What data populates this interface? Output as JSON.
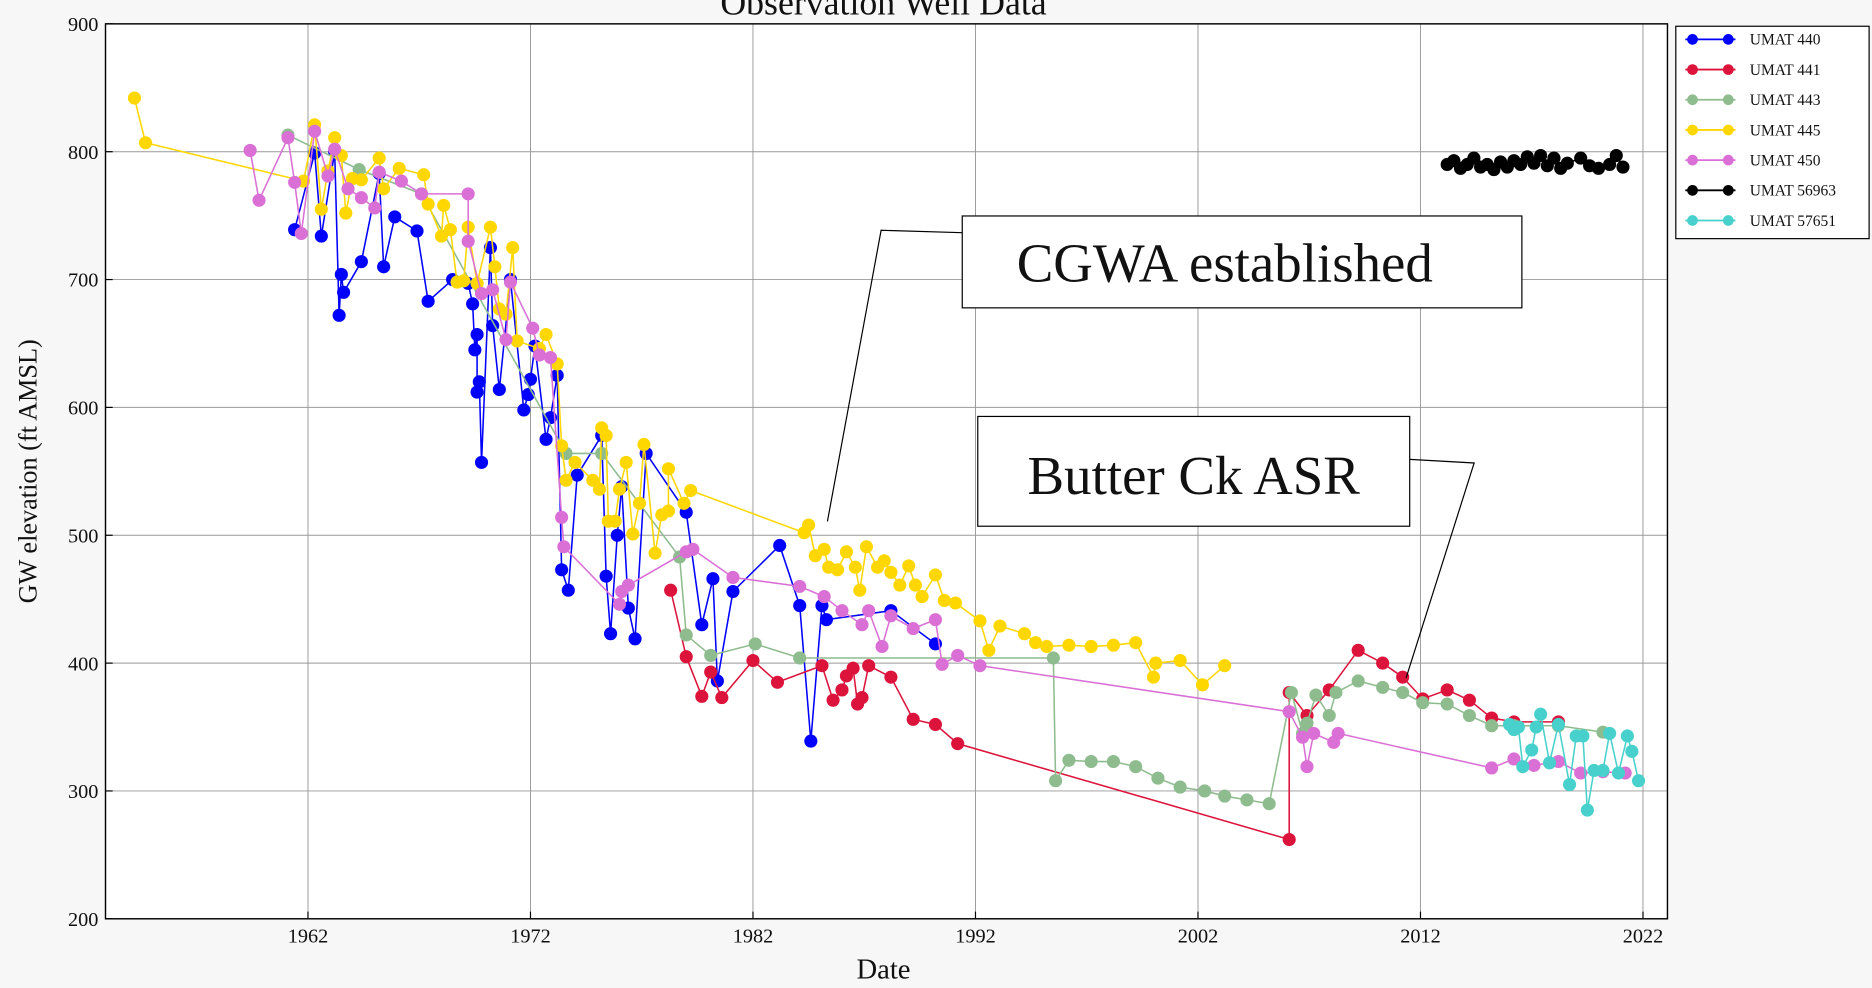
{
  "chart_data": {
    "type": "line",
    "title": "Observation Well Data",
    "x_label": "Date",
    "y_label": "GW elevation (ft AMSL)",
    "xlim": [
      1952.9,
      2023.1
    ],
    "ylim": [
      200,
      900
    ],
    "xticks": [
      1962,
      1972,
      1982,
      1992,
      2002,
      2012,
      2022
    ],
    "yticks": [
      200,
      300,
      400,
      500,
      600,
      700,
      800,
      900
    ],
    "grid": true,
    "legend": "outside-right",
    "annotations": [
      {
        "text": "CGWA established"
      },
      {
        "text": "Butter Ck ASR"
      }
    ],
    "series": [
      {
        "name": "UMAT 440",
        "color": "#0000ff",
        "x": [
          1961.4,
          1962.3,
          1962.6,
          1963.2,
          1963.4,
          1963.5,
          1963.6,
          1964.4,
          1965.2,
          1965.4,
          1965.9,
          1966.9,
          1967.4,
          1968.5,
          1969.2,
          1969.4,
          1969.5,
          1969.6,
          1969.6,
          1969.7,
          1969.8,
          1970.2,
          1970.3,
          1970.6,
          1971.1,
          1971.7,
          1971.9,
          1972.0,
          1972.2,
          1972.7,
          1972.9,
          1973.2,
          1973.4,
          1973.7,
          1974.1,
          1975.2,
          1975.4,
          1975.6,
          1975.9,
          1976.1,
          1976.4,
          1976.7,
          1977.2,
          1979.0,
          1979.7,
          1980.2,
          1980.4,
          1981.1,
          1983.2,
          1984.1,
          1984.6,
          1985.1,
          1985.3,
          1988.2,
          1990.2
        ],
        "values": [
          739,
          799,
          734,
          800,
          672,
          704,
          690,
          714,
          783,
          710,
          749,
          738,
          683,
          700,
          697,
          681,
          645,
          657,
          612,
          620,
          557,
          725,
          664,
          614,
          700,
          598,
          610,
          622,
          648,
          575,
          592,
          625,
          473,
          457,
          547,
          578,
          468,
          423,
          500,
          538,
          443,
          419,
          564,
          518,
          430,
          466,
          386,
          456,
          492,
          445,
          339,
          445,
          434,
          441,
          415
        ]
      },
      {
        "name": "UMAT 441",
        "color": "#dc143c",
        "x": [
          1978.3,
          1979.0,
          1979.7,
          1980.1,
          1980.6,
          1982.0,
          1983.1,
          1985.1,
          1985.6,
          1986.0,
          1986.2,
          1986.5,
          1986.7,
          1986.9,
          1987.2,
          1988.2,
          1989.2,
          1990.2,
          1991.2,
          2006.1,
          2006.1,
          2006.9,
          2007.9,
          2009.2,
          2010.3,
          2011.2,
          2012.1,
          2013.2,
          2014.2,
          2015.2,
          2016.2,
          2018.2
        ],
        "values": [
          457,
          405,
          374,
          393,
          373,
          402,
          385,
          398,
          371,
          379,
          390,
          396,
          368,
          373,
          398,
          389,
          356,
          352,
          337,
          262,
          377,
          359,
          379,
          410,
          400,
          389,
          372,
          379,
          371,
          357,
          354,
          354
        ]
      },
      {
        "name": "UMAT 443",
        "color": "#8fbc8f",
        "x": [
          1961.1,
          1964.3,
          1967.1,
          1973.6,
          1975.2,
          1978.7,
          1979.0,
          1980.1,
          1982.1,
          1984.1,
          1995.5,
          1995.6,
          1996.2,
          1997.2,
          1998.2,
          1999.2,
          2000.2,
          2001.2,
          2002.3,
          2003.2,
          2004.2,
          2005.2,
          2006.2,
          2006.7,
          2006.9,
          2007.3,
          2007.9,
          2008.2,
          2009.2,
          2010.3,
          2011.2,
          2012.1,
          2013.2,
          2014.2,
          2015.2,
          2016.2,
          2018.2,
          2020.2
        ],
        "values": [
          813,
          786,
          767,
          564,
          564,
          483,
          422,
          406,
          415,
          404,
          404,
          308,
          324,
          323,
          323,
          319,
          310,
          303,
          300,
          296,
          293,
          290,
          377,
          345,
          353,
          375,
          359,
          377,
          386,
          381,
          377,
          369,
          368,
          359,
          351,
          351,
          351,
          346
        ]
      },
      {
        "name": "UMAT 445",
        "color": "#ffd700",
        "x": [
          1954.2,
          1954.7,
          1961.8,
          1962.3,
          1962.6,
          1962.9,
          1963.2,
          1963.5,
          1963.7,
          1964.0,
          1964.4,
          1965.2,
          1965.4,
          1966.1,
          1967.2,
          1967.4,
          1968.0,
          1968.1,
          1968.4,
          1968.7,
          1969.0,
          1969.2,
          1969.6,
          1970.2,
          1970.4,
          1970.6,
          1970.9,
          1971.2,
          1971.4,
          1972.4,
          1972.7,
          1973.2,
          1973.4,
          1973.6,
          1974.0,
          1974.8,
          1975.1,
          1975.2,
          1975.4,
          1975.5,
          1975.8,
          1976.0,
          1976.3,
          1976.6,
          1976.9,
          1977.1,
          1977.6,
          1977.9,
          1978.2,
          1978.2,
          1978.9,
          1979.2,
          1984.3,
          1984.5,
          1984.8,
          1985.2,
          1985.4,
          1985.8,
          1986.2,
          1986.6,
          1986.8,
          1987.1,
          1987.6,
          1987.9,
          1988.2,
          1988.6,
          1989.0,
          1989.3,
          1989.6,
          1990.2,
          1990.6,
          1991.1,
          1992.2,
          1992.6,
          1993.1,
          1994.2,
          1994.7,
          1995.2,
          1996.2,
          1997.2,
          1998.2,
          1999.2,
          2000.0,
          2000.1,
          2001.2,
          2002.2,
          2003.2
        ],
        "values": [
          842,
          807,
          777,
          821,
          755,
          785,
          811,
          797,
          752,
          779,
          778,
          795,
          771,
          787,
          782,
          759,
          734,
          758,
          739,
          698,
          699,
          741,
          697,
          741,
          710,
          677,
          673,
          725,
          652,
          646,
          657,
          634,
          570,
          543,
          557,
          543,
          536,
          584,
          578,
          511,
          511,
          536,
          557,
          501,
          525,
          571,
          486,
          516,
          519,
          552,
          525,
          535,
          502,
          508,
          484,
          489,
          475,
          473,
          487,
          475,
          457,
          491,
          475,
          480,
          471,
          461,
          476,
          461,
          452,
          469,
          449,
          447,
          433,
          410,
          429,
          423,
          416,
          413,
          414,
          413,
          414,
          416,
          389,
          400,
          402,
          383,
          398
        ]
      },
      {
        "name": "UMAT 450",
        "color": "#da70d6",
        "x": [
          1959.4,
          1959.8,
          1961.1,
          1961.4,
          1961.7,
          1962.3,
          1962.9,
          1963.2,
          1963.8,
          1964.4,
          1965.0,
          1965.2,
          1966.2,
          1967.1,
          1969.2,
          1969.2,
          1969.8,
          1970.3,
          1970.9,
          1971.1,
          1972.1,
          1972.4,
          1972.9,
          1973.4,
          1973.5,
          1976.0,
          1976.1,
          1976.4,
          1979.0,
          1979.3,
          1981.1,
          1984.1,
          1985.2,
          1986.0,
          1986.9,
          1987.2,
          1987.8,
          1988.2,
          1989.2,
          1990.2,
          1990.5,
          1991.2,
          1992.2,
          2006.1,
          2006.7,
          2006.9,
          2007.2,
          2008.1,
          2008.3,
          2015.2,
          2016.2,
          2017.1,
          2018.2,
          2019.2,
          2020.2,
          2021.2
        ],
        "values": [
          801,
          762,
          811,
          776,
          736,
          816,
          781,
          802,
          771,
          764,
          756,
          784,
          777,
          767,
          767,
          730,
          689,
          692,
          653,
          698,
          662,
          641,
          639,
          514,
          491,
          446,
          456,
          461,
          487,
          489,
          467,
          460,
          452,
          441,
          430,
          441,
          413,
          437,
          427,
          434,
          399,
          406,
          398,
          362,
          342,
          319,
          345,
          338,
          345,
          318,
          325,
          320,
          323,
          314,
          315,
          314
        ]
      },
      {
        "name": "UMAT 56963",
        "color": "#000000",
        "x": [
          2013.2,
          2013.5,
          2013.8,
          2014.1,
          2014.4,
          2014.7,
          2015.0,
          2015.3,
          2015.6,
          2015.9,
          2016.2,
          2016.5,
          2016.8,
          2017.1,
          2017.4,
          2017.7,
          2018.0,
          2018.3,
          2018.6,
          2019.2,
          2019.6,
          2020.0,
          2020.5,
          2020.8,
          2021.1
        ],
        "values": [
          790,
          793,
          787,
          790,
          795,
          788,
          790,
          786,
          792,
          788,
          793,
          790,
          796,
          791,
          797,
          789,
          795,
          787,
          791,
          795,
          789,
          787,
          790,
          797,
          788
        ]
      },
      {
        "name": "UMAT 57651",
        "color": "#48d1cc",
        "x": [
          2016.0,
          2016.2,
          2016.4,
          2016.6,
          2017.0,
          2017.2,
          2017.4,
          2017.8,
          2018.2,
          2018.7,
          2019.0,
          2019.3,
          2019.5,
          2019.8,
          2020.2,
          2020.5,
          2020.9,
          2021.3,
          2021.5,
          2021.8
        ],
        "values": [
          352,
          348,
          350,
          319,
          332,
          350,
          360,
          322,
          352,
          305,
          343,
          343,
          285,
          316,
          316,
          345,
          314,
          343,
          331,
          308
        ]
      }
    ]
  }
}
